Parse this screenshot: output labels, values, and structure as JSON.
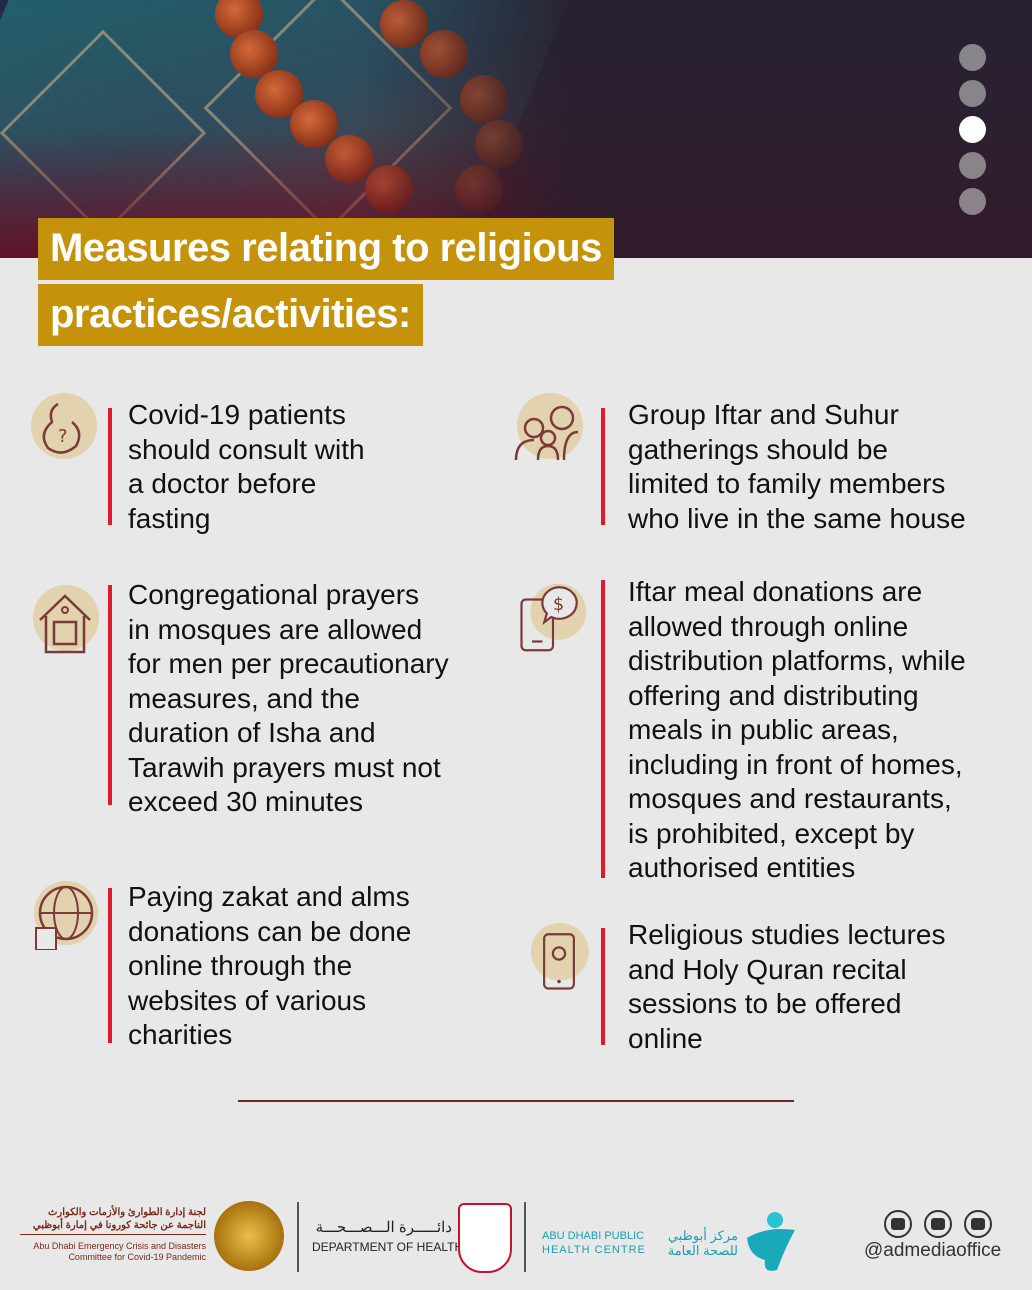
{
  "header": {
    "title_line1": "Measures relating to religious",
    "title_line2": "practices/activities:",
    "pagination": {
      "total": 5,
      "active": 3
    }
  },
  "colors": {
    "title_bg": "#c4920b",
    "accent_bar": "#e3182d",
    "icon_bg": "#e2d2ad",
    "icon_stroke": "#7a3b3b",
    "background": "#e8e8e8"
  },
  "measures": {
    "left": [
      {
        "icon": "pregnancy-health-icon",
        "text": "Covid-19 patients\nshould consult with\na doctor before\nfasting"
      },
      {
        "icon": "mosque-home-prayer-icon",
        "text": "Congregational prayers\nin mosques are allowed\nfor men per precautionary\nmeasures, and the\nduration of Isha and\nTarawih prayers must not\nexceed 30 minutes"
      },
      {
        "icon": "globe-coins-icon",
        "text": "Paying zakat and alms\ndonations can be done\nonline through the\nwebsites of various\ncharities"
      }
    ],
    "right": [
      {
        "icon": "family-group-icon",
        "text": "Group Iftar and Suhur\ngatherings should be\nlimited to family members\nwho live in the same house"
      },
      {
        "icon": "phone-donation-icon",
        "text": "Iftar meal donations are\nallowed through online\ndistribution platforms, while\noffering and distributing\nmeals in public areas,\nincluding in front of homes,\nmosques and restaurants,\nis prohibited, except by\nauthorised entities"
      },
      {
        "icon": "phone-settings-icon",
        "text": "Religious studies lectures\nand Holy Quran recital\nsessions to be offered\nonline"
      }
    ]
  },
  "footer": {
    "crisis_committee_ar_1": "لجنة إدارة الطوارئ والأزمات والكوارث",
    "crisis_committee_ar_2": "الناجمة عن جائحة كورونا في إمارة أبوظبي",
    "crisis_committee_en_1": "Abu Dhabi Emergency Crisis and Disasters",
    "crisis_committee_en_2": "Committee for Covid-19 Pandemic",
    "doh_ar": "دائـــــرة الـــصـــحـــة",
    "doh_en": "DEPARTMENT OF HEALTH",
    "phc_en_1": "ABU DHABI PUBLIC",
    "phc_en_2": "HEALTH CENTRE",
    "phc_ar_1": "مركز أبوظبي",
    "phc_ar_2": "للصحة العامة",
    "social_handle": "@admediaoffice",
    "social_icons": [
      "twitter-icon",
      "instagram-icon",
      "youtube-icon"
    ]
  }
}
